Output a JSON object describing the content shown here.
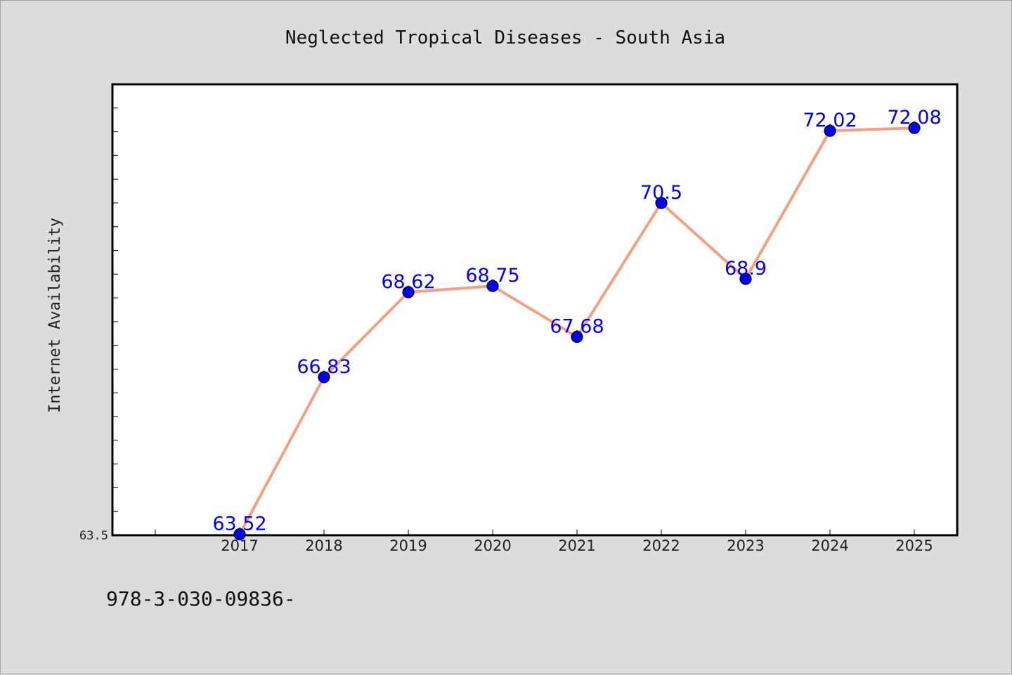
{
  "chart_data": {
    "type": "line",
    "title": "Neglected Tropical Diseases - South Asia",
    "ylabel": "Internet Availability",
    "xlabel": "",
    "categories": [
      "2017",
      "2018",
      "2019",
      "2020",
      "2021",
      "2022",
      "2023",
      "2024",
      "2025"
    ],
    "values": [
      63.52,
      66.83,
      68.62,
      68.75,
      67.68,
      70.5,
      68.9,
      72.02,
      72.08
    ],
    "data_labels": [
      "63.52",
      "66.83",
      "68.62",
      "68.75",
      "67.68",
      "70.5",
      "68.9",
      "72.02",
      "72.08"
    ],
    "ylim": [
      63.5,
      73.0
    ],
    "y_tick_labels": [
      "63.5"
    ],
    "line_color": "#f4a07f",
    "marker_color": "#0000ee",
    "label_color": "#0000ee",
    "plot_background": "#ffffff",
    "figure_background": "#dcdcdc",
    "grid": false
  },
  "footer": {
    "code": "978-3-030-09836-"
  }
}
